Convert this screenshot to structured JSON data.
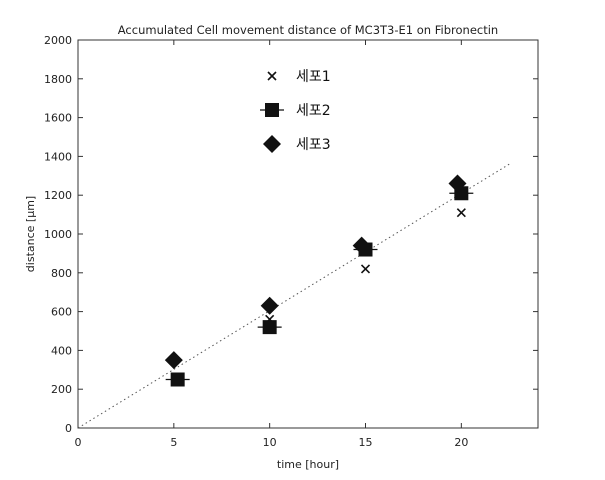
{
  "chart_data": {
    "type": "scatter",
    "title": "Accumulated Cell movement distance of MC3T3-E1 on Fibronectin",
    "xlabel": "time [hour]",
    "ylabel": "distance [µm]",
    "xlim": [
      0,
      24
    ],
    "ylim": [
      0,
      2000
    ],
    "x_ticks": [
      0,
      5,
      10,
      15,
      20
    ],
    "y_ticks": [
      0,
      200,
      400,
      600,
      800,
      1000,
      1200,
      1400,
      1600,
      1800,
      2000
    ],
    "legend_position": "top-center",
    "grid": false,
    "series": [
      {
        "name": "세포1",
        "marker": "x",
        "points": [
          [
            5.2,
            250
          ],
          [
            10,
            560
          ],
          [
            15,
            820
          ],
          [
            20,
            1110
          ]
        ]
      },
      {
        "name": "세포2",
        "marker": "square",
        "points": [
          [
            5.2,
            250
          ],
          [
            10,
            520
          ],
          [
            15,
            920
          ],
          [
            20,
            1210
          ]
        ]
      },
      {
        "name": "세포3",
        "marker": "diamond",
        "points": [
          [
            5.0,
            350
          ],
          [
            10,
            630
          ],
          [
            14.8,
            940
          ],
          [
            19.8,
            1260
          ]
        ]
      }
    ],
    "trendline": {
      "style": "dotted",
      "points": [
        [
          0,
          0
        ],
        [
          22.5,
          1360
        ]
      ]
    }
  }
}
